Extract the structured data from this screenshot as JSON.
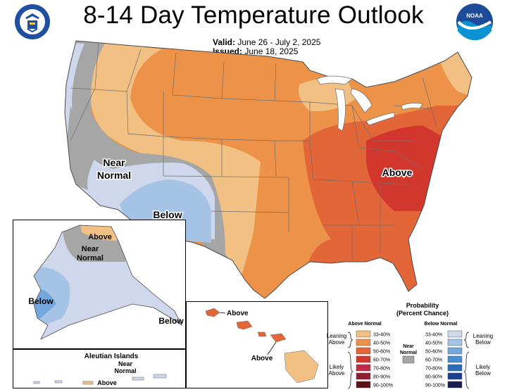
{
  "header": {
    "title": "8-14 Day Temperature Outlook",
    "valid_label": "Valid:",
    "valid_value": "June 26 - July 2, 2025",
    "issued_label": "Issued:",
    "issued_value": "June 18, 2025"
  },
  "logos": {
    "left": "department-of-commerce-seal",
    "right": "noaa-logo",
    "right_text": "NOAA"
  },
  "map": {
    "labels": {
      "conus_near_normal_1": "Near",
      "conus_near_normal_2": "Normal",
      "conus_below": "Below",
      "conus_above": "Above",
      "alaska_above": "Above",
      "alaska_near_1": "Near",
      "alaska_near_2": "Normal",
      "alaska_below_west": "Below",
      "alaska_below_se": "Below",
      "aleutian_title": "Aleutian Islands",
      "aleutian_near_1": "Near",
      "aleutian_near_2": "Normal",
      "aleutian_above": "Above",
      "hawaii_above_1": "Above",
      "hawaii_above_2": "Above"
    },
    "colors": {
      "above_33_40": "#f2c082",
      "above_40_50": "#ec9349",
      "above_50_60": "#e26638",
      "above_60_70": "#d2372d",
      "above_70_80": "#c02b47",
      "above_80_90": "#8f1e34",
      "above_90_100": "#5b1114",
      "near_normal": "#a6a6a6",
      "below_33_40": "#cfd7ed",
      "below_40_50": "#a5c3e5",
      "below_50_60": "#74a7dc",
      "below_60_70": "#4a8cd1",
      "below_70_80": "#2a6cb6",
      "below_80_90": "#1c3f8f",
      "below_90_100": "#1a1a55"
    }
  },
  "legend": {
    "title_1": "Probability",
    "title_2": "(Percent Chance)",
    "above_header": "Above Normal",
    "below_header": "Below Normal",
    "leaning_above_1": "Leaning",
    "leaning_above_2": "Above",
    "likely_above_1": "Likely",
    "likely_above_2": "Above",
    "leaning_below_1": "Leaning",
    "leaning_below_2": "Below",
    "likely_below_1": "Likely",
    "likely_below_2": "Below",
    "near_1": "Near",
    "near_2": "Normal",
    "above_ranges": [
      "33-40%",
      "40-50%",
      "50-60%",
      "60-70%",
      "70-80%",
      "80-90%",
      "90-100%"
    ],
    "below_ranges": [
      "33-40%",
      "40-50%",
      "50-60%",
      "60-70%",
      "70-80%",
      "80-90%",
      "90-100%"
    ]
  }
}
